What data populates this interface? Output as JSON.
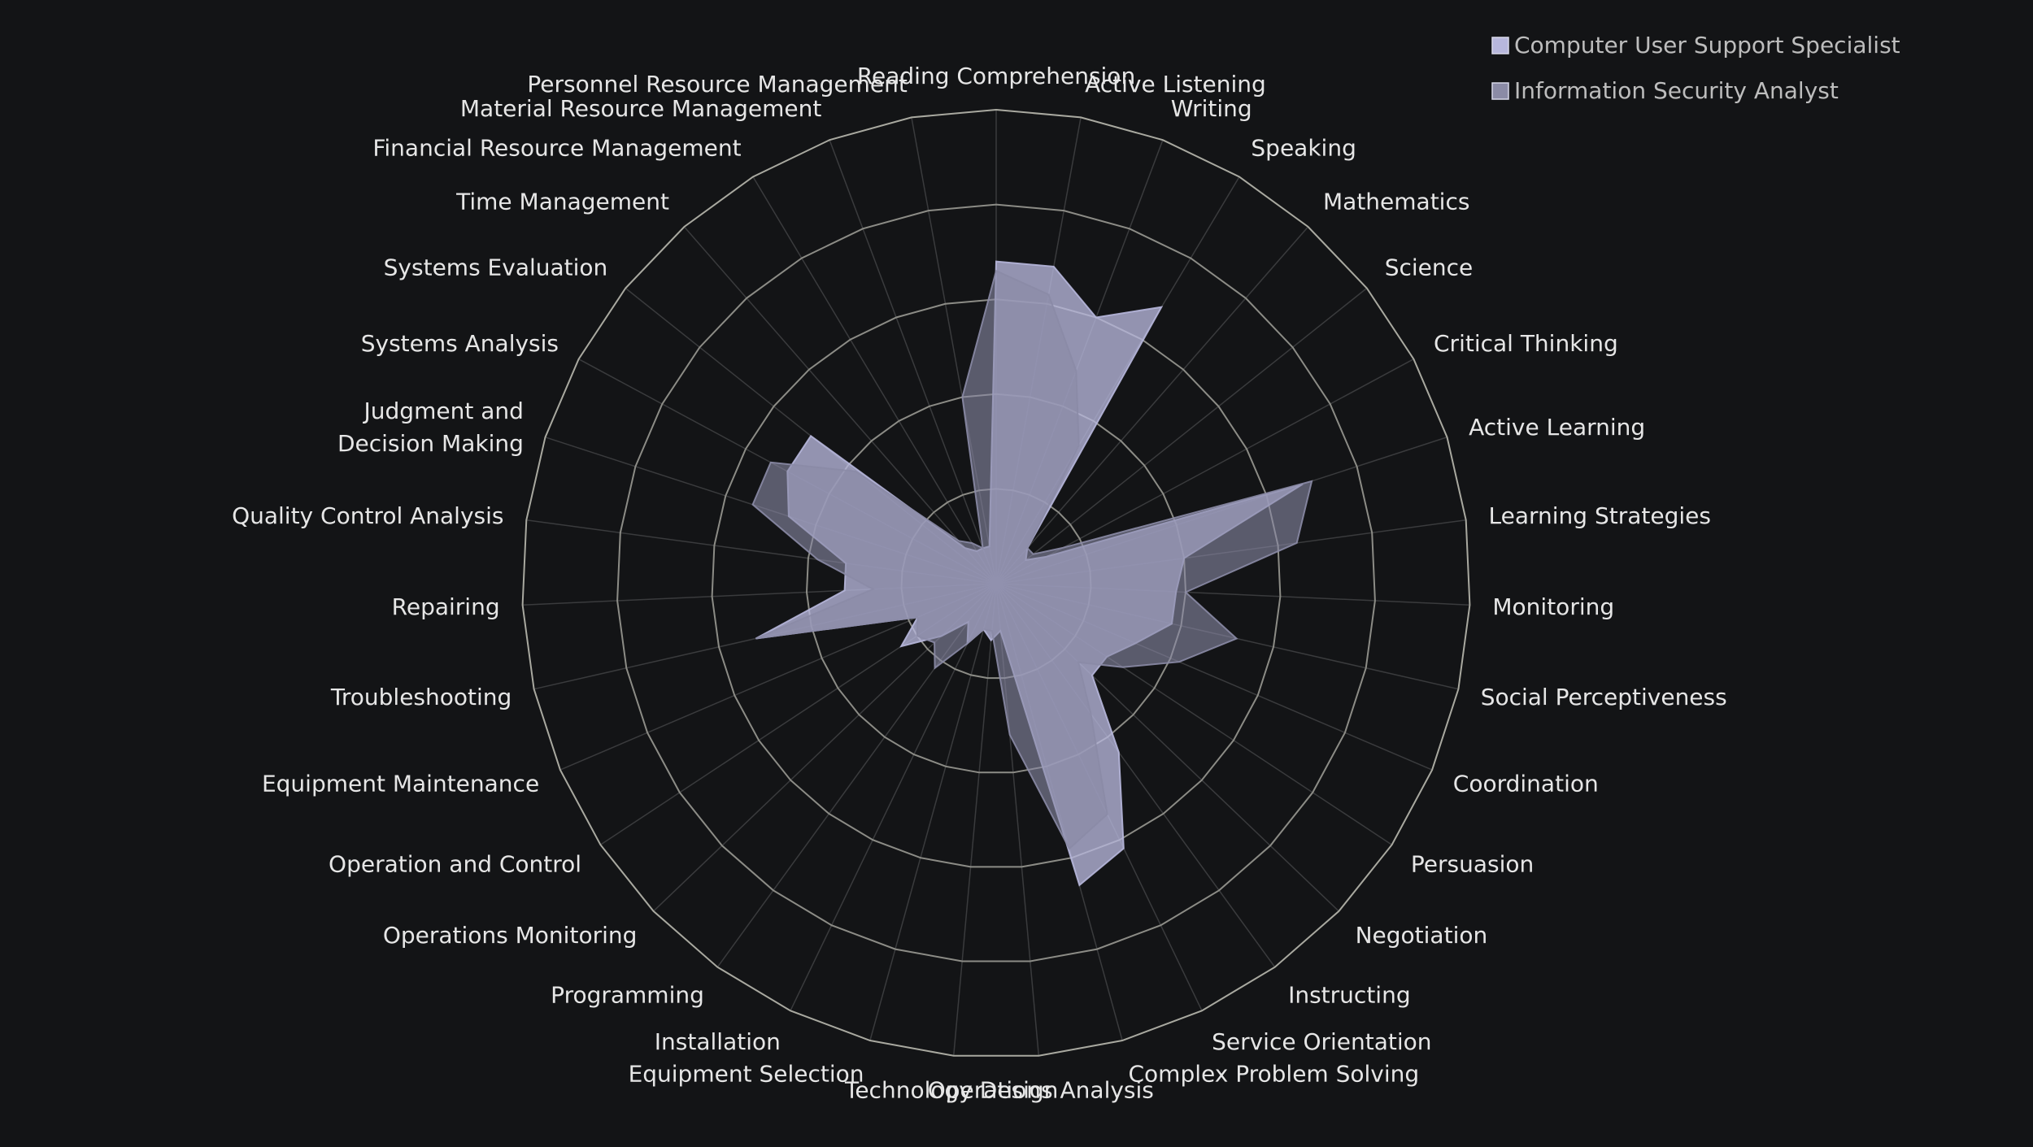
{
  "chart_data": {
    "type": "radar",
    "title": "",
    "rlim": [
      0,
      5
    ],
    "rings": [
      1,
      2,
      3,
      4,
      5
    ],
    "grid": true,
    "legend_position": "top-right",
    "axes": [
      "Reading Comprehension",
      "Active Listening",
      "Writing",
      "Speaking",
      "Mathematics",
      "Science",
      "Critical Thinking",
      "Active Learning",
      "Learning Strategies",
      "Monitoring",
      "Social Perceptiveness",
      "Coordination",
      "Persuasion",
      "Negotiation",
      "Instructing",
      "Service Orientation",
      "Complex Problem Solving",
      "Operations Analysis",
      "Technology Design",
      "Equipment Selection",
      "Installation",
      "Programming",
      "Operations Monitoring",
      "Operation and Control",
      "Equipment Maintenance",
      "Troubleshooting",
      "Repairing",
      "Quality Control Analysis",
      "Judgment and Decision Making",
      "Systems Analysis",
      "Systems Evaluation",
      "Time Management",
      "Financial Resource Management",
      "Material Resource Management",
      "Personnel Resource Management"
    ],
    "series": [
      {
        "name": "Computer User Support Specialist",
        "color": "#b7b7dc",
        "values": [
          3.4,
          3.4,
          3.0,
          3.4,
          0.5,
          0.4,
          0.6,
          3.4,
          2.0,
          1.9,
          1.9,
          1.6,
          1.4,
          1.4,
          2.2,
          3.1,
          3.3,
          0.5,
          0.6,
          0.5,
          0.7,
          0.5,
          0.8,
          1.2,
          0.9,
          2.6,
          1.6,
          1.6,
          2.3,
          2.5,
          2.5,
          0.5,
          0.4,
          0.4,
          0.4
        ]
      },
      {
        "name": "Information Security Analyst",
        "color": "#8b8ba6",
        "values": [
          3.3,
          3.1,
          2.4,
          1.7,
          0.5,
          0.5,
          0.8,
          3.5,
          3.2,
          2.0,
          2.6,
          2.1,
          1.6,
          1.2,
          1.7,
          2.7,
          2.9,
          1.6,
          0.5,
          0.5,
          0.7,
          1.1,
          0.9,
          1.0,
          0.9,
          2.6,
          1.3,
          1.9,
          2.7,
          2.7,
          1.9,
          0.6,
          0.5,
          0.4,
          2.0
        ]
      }
    ]
  }
}
